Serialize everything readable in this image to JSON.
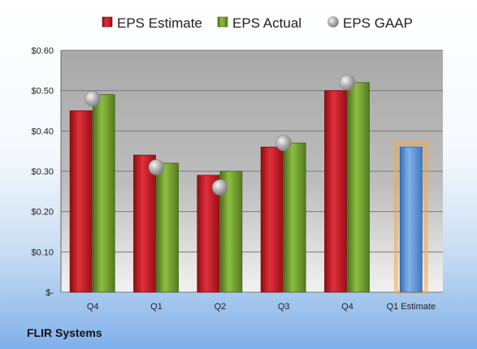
{
  "company": "FLIR Systems",
  "chart_data": {
    "type": "bar",
    "categories": [
      "Q4",
      "Q1",
      "Q2",
      "Q3",
      "Q4",
      "Q1 Estimate"
    ],
    "series": [
      {
        "name": "EPS Estimate",
        "type": "bar",
        "color": "#c8141c",
        "values": [
          0.45,
          0.34,
          0.29,
          0.36,
          0.5,
          null
        ]
      },
      {
        "name": "EPS Actual",
        "type": "bar",
        "color": "#6f9a2e",
        "values": [
          0.49,
          0.32,
          0.3,
          0.37,
          0.52,
          null
        ]
      },
      {
        "name": "EPS GAAP",
        "type": "scatter",
        "color": "#b0b0b0",
        "values": [
          0.48,
          0.31,
          0.26,
          0.37,
          0.52,
          null
        ]
      },
      {
        "name": "",
        "type": "bar",
        "color": "#5b93d6",
        "highlight": "#f5a54a",
        "values": [
          null,
          null,
          null,
          null,
          null,
          0.36
        ]
      }
    ],
    "ylim": [
      0,
      0.6
    ],
    "yticks": [
      0,
      0.1,
      0.2,
      0.3,
      0.4,
      0.5,
      0.6
    ],
    "ytick_labels": [
      "$-",
      "$0.10",
      "$0.20",
      "$0.30",
      "$0.40",
      "$0.50",
      "$0.60"
    ],
    "grid": true,
    "legend_position": "top"
  }
}
